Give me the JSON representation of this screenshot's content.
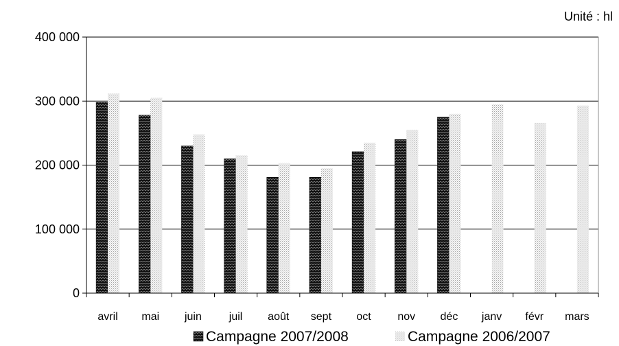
{
  "chart_data": {
    "type": "bar",
    "unit_label": "Unité : hl",
    "categories": [
      "avril",
      "mai",
      "juin",
      "juil",
      "août",
      "sept",
      "oct",
      "nov",
      "déc",
      "janv",
      "févr",
      "mars"
    ],
    "series": [
      {
        "name": "Campagne 2007/2008",
        "color": "#1a1a1a",
        "values": [
          298000,
          278000,
          230000,
          210000,
          181000,
          181000,
          221000,
          240000,
          275000,
          null,
          null,
          null
        ]
      },
      {
        "name": "Campagne 2006/2007",
        "color": "#d8d8d8",
        "values": [
          312000,
          305000,
          248000,
          215000,
          203000,
          195000,
          235000,
          255000,
          280000,
          295000,
          266000,
          293000
        ]
      }
    ],
    "ylim": [
      0,
      400000
    ],
    "yticks": [
      0,
      100000,
      200000,
      300000,
      400000
    ],
    "ytick_labels": [
      "0",
      "100 000",
      "200 000",
      "300 000",
      "400 000"
    ],
    "grid": "horizontal",
    "legend": "bottom"
  }
}
